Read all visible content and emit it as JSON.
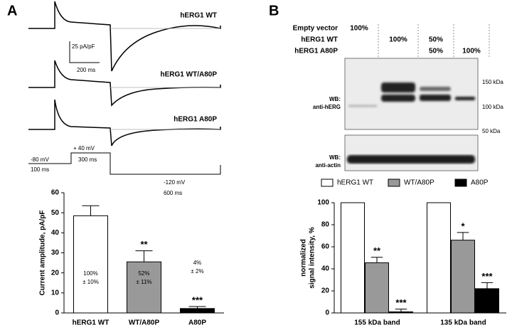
{
  "panels": {
    "a": "A",
    "b": "B"
  },
  "traces": {
    "labels": [
      "hERG1 WT",
      "hERG1 WT/A80P",
      "hERG1 A80P"
    ],
    "scale_y": "25 pA/pF",
    "scale_x": "200 ms",
    "protocol": [
      "-80 mV",
      "100 ms",
      "+ 40 mV",
      "300 ms",
      "-120 mV",
      "600 ms"
    ]
  },
  "blot": {
    "rows": [
      "Empty vector",
      "hERG1 WT",
      "hERG1 A80P"
    ],
    "cells": [
      [
        "100%",
        null,
        null,
        null
      ],
      [
        null,
        "100%",
        "50%",
        null
      ],
      [
        null,
        null,
        "50%",
        "100%"
      ]
    ],
    "herg_label": [
      "WB:",
      "anti-hERG"
    ],
    "actin_label": [
      "WB:",
      "anti-actin"
    ],
    "markers": [
      "150 kDa",
      "100 kDa",
      "50 kDa"
    ]
  },
  "chart_data": [
    {
      "type": "bar",
      "ylabel": "Current amplitude, pA/pF",
      "categories": [
        "hERG1 WT",
        "WT/A80P",
        "A80P"
      ],
      "values": [
        48.5,
        25.5,
        2.2
      ],
      "errors": [
        5,
        5.5,
        1
      ],
      "colors": [
        "#ffffff",
        "#999999",
        "#000000"
      ],
      "annotations": [
        [
          "100%",
          "± 10%"
        ],
        [
          "52%",
          "± 11%"
        ],
        [
          "4%",
          "± 2%"
        ]
      ],
      "significance": [
        null,
        "**",
        "***"
      ],
      "ylim": [
        0,
        60
      ],
      "yticks": [
        0,
        10,
        20,
        30,
        40,
        50,
        60
      ]
    },
    {
      "type": "grouped_bar",
      "ylabel": [
        "normalized",
        "signal intensity, %"
      ],
      "categories": [
        "155 kDa band",
        "135 kDa band"
      ],
      "series": [
        {
          "name": "hERG1 WT",
          "color": "#ffffff",
          "values": [
            100,
            100
          ],
          "errors": [
            0,
            0
          ],
          "significance": [
            null,
            null
          ]
        },
        {
          "name": "WT/A80P",
          "color": "#999999",
          "values": [
            45.5,
            66
          ],
          "errors": [
            5,
            7
          ],
          "significance": [
            "**",
            "*"
          ]
        },
        {
          "name": "A80P",
          "color": "#000000",
          "values": [
            1,
            22
          ],
          "errors": [
            2.5,
            5.5
          ],
          "significance": [
            "***",
            "***"
          ]
        }
      ],
      "ylim": [
        0,
        100
      ],
      "yticks": [
        0,
        20,
        40,
        60,
        80,
        100
      ]
    }
  ]
}
